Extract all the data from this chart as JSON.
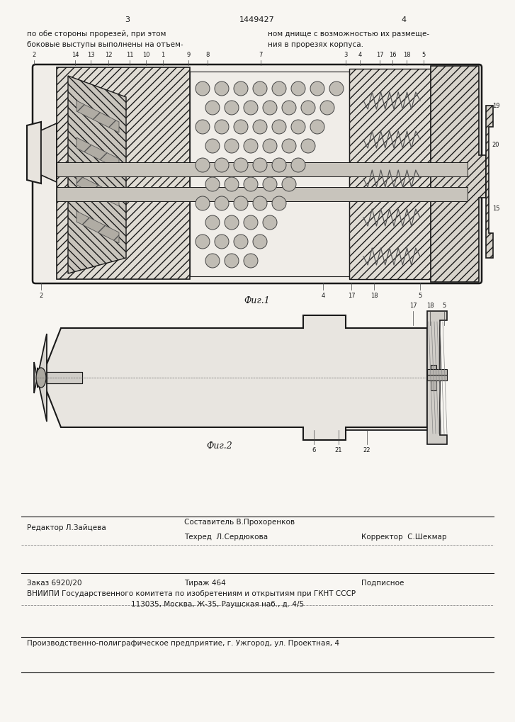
{
  "page_color": "#f8f6f2",
  "text_color": "#1a1a1a",
  "line_color": "#1a1a1a",
  "page_num_left": "3",
  "page_num_center": "1449427",
  "page_num_right": "4",
  "text_col1_line1": "по обе стороны прорезей, при этом",
  "text_col1_line2": "боковые выступы выполнены на отъем-",
  "text_col2_line1": "ном днище с возможностью их размеще-",
  "text_col2_line2": "ния в прорезях корпуса.",
  "fig1_caption": "Фиг.1",
  "fig2_caption": "Фиг.2",
  "footer_editor": "Редактор Л.Зайцева",
  "footer_compiler": "Составитель В.Прохоренков",
  "footer_tech": "Техред  Л.Сердюкова",
  "footer_corrector": "Корректор  С.Шекмар",
  "footer_order": "Заказ 6920/20",
  "footer_tirazh": "Тираж 464",
  "footer_podpisnoe": "Подписное",
  "footer_vniipи": "ВНИИПИ Государственного комитета по изобретениям и открытиям при ГКНТ СССР",
  "footer_addr": "113035, Москва, Ж-35, Раушская наб., д. 4/5",
  "footer_factory": "Производственно-полиграфическое предприятие, г. Ужгород, ул. Проектная, 4"
}
